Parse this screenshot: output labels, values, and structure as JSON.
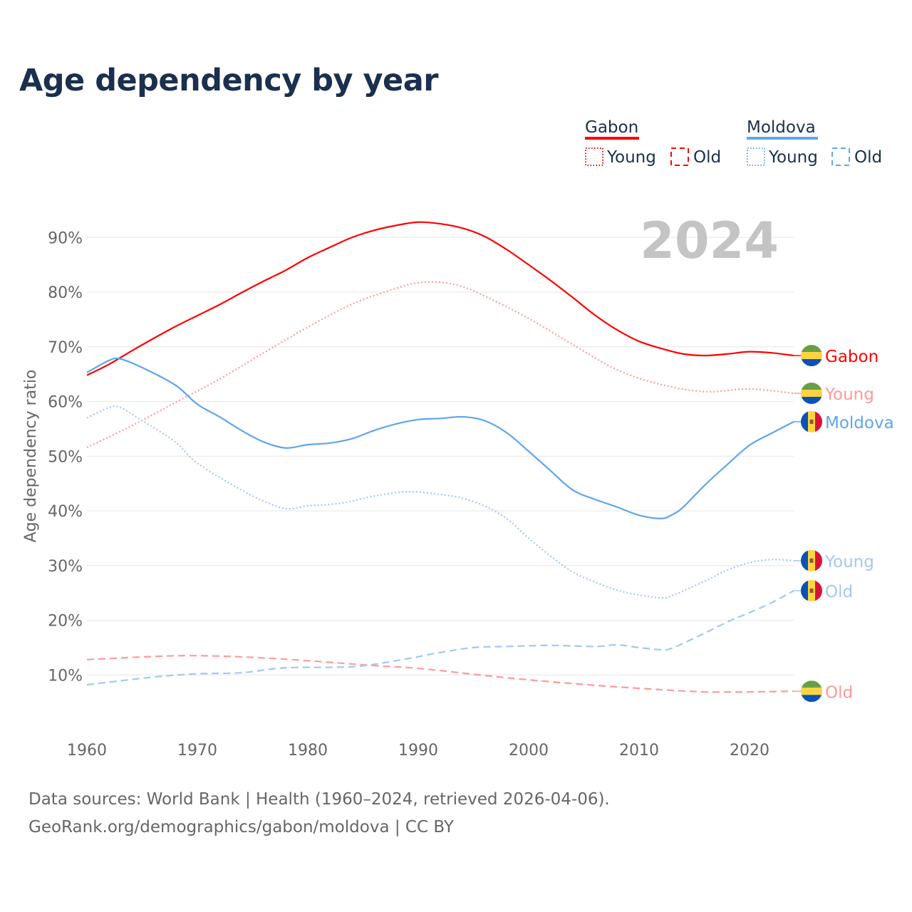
{
  "title": "Age dependency by year",
  "watermark_year": "2024",
  "footer": {
    "line1": "Data sources: World Bank | Health (1960–2024, retrieved 2026-04-06).",
    "line2": "GeoRank.org/demographics/gabon/moldova | CC BY"
  },
  "legend": {
    "groups": [
      {
        "name": "Gabon",
        "color": "#ff0000",
        "young": "Young",
        "old": "Old"
      },
      {
        "name": "Moldova",
        "color": "#5ea6ea",
        "young": "Young",
        "old": "Old"
      }
    ]
  },
  "chart_data": {
    "type": "line",
    "title": "Age dependency by year",
    "xlabel": "",
    "ylabel": "Age dependency ratio",
    "xlim": [
      1960,
      2024
    ],
    "ylim": [
      0,
      95
    ],
    "xticks": [
      "1960",
      "1970",
      "1980",
      "1990",
      "2000",
      "2010",
      "2020"
    ],
    "yticks": [
      "10%",
      "20%",
      "30%",
      "40%",
      "50%",
      "60%",
      "70%",
      "80%",
      "90%"
    ],
    "grid": true,
    "series": [
      {
        "name": "Gabon",
        "end_label": "Gabon",
        "country": "gabon",
        "style": "solid",
        "color": "#ff0000",
        "x": [
          1960,
          1962,
          1964,
          1966,
          1968,
          1970,
          1972,
          1974,
          1976,
          1978,
          1980,
          1982,
          1984,
          1986,
          1988,
          1990,
          1992,
          1994,
          1996,
          1998,
          2000,
          2002,
          2004,
          2006,
          2008,
          2010,
          2012,
          2014,
          2016,
          2018,
          2020,
          2022,
          2024
        ],
        "y": [
          64.8,
          66.8,
          69.2,
          71.5,
          73.7,
          75.7,
          77.7,
          79.9,
          82,
          84,
          86.3,
          88.2,
          90,
          91.3,
          92.2,
          92.8,
          92.5,
          91.7,
          90.2,
          87.8,
          85,
          82.1,
          79,
          75.8,
          73.1,
          71,
          69.7,
          68.7,
          68.4,
          68.7,
          69.1,
          68.9,
          68.4
        ]
      },
      {
        "name": "Gabon Young",
        "end_label": "Young",
        "country": "gabon",
        "style": "dotted",
        "color": "#ff9a9a",
        "x": [
          1960,
          1964,
          1968,
          1972,
          1976,
          1980,
          1984,
          1988,
          1990,
          1992,
          1994,
          1996,
          2000,
          2004,
          2008,
          2012,
          2016,
          2020,
          2024
        ],
        "y": [
          51.6,
          55.5,
          59.8,
          64.1,
          68.9,
          73.6,
          77.8,
          80.7,
          81.7,
          81.8,
          81,
          79.3,
          75.2,
          70.4,
          65.8,
          63.1,
          61.8,
          62.3,
          61.5
        ]
      },
      {
        "name": "Gabon Old",
        "end_label": "Old",
        "country": "gabon",
        "style": "dashed",
        "color": "#ff9a9a",
        "x": [
          1960,
          1968,
          1974,
          1980,
          1986,
          1990,
          1996,
          2000,
          2006,
          2012,
          2016,
          2020,
          2024
        ],
        "y": [
          12.8,
          13.5,
          13.3,
          12.6,
          11.7,
          11.2,
          9.9,
          9.1,
          8.1,
          7.3,
          6.9,
          6.9,
          7.0
        ]
      },
      {
        "name": "Moldova",
        "end_label": "Moldova",
        "country": "moldova",
        "style": "solid",
        "color": "#5ea6ea",
        "x": [
          1960,
          1962,
          1963,
          1965,
          1968,
          1970,
          1972,
          1974,
          1976,
          1978,
          1980,
          1982,
          1984,
          1986,
          1988,
          1990,
          1992,
          1994,
          1996,
          1998,
          2000,
          2002,
          2004,
          2006,
          2008,
          2010,
          2012,
          2013,
          2014,
          2016,
          2018,
          2020,
          2022,
          2024
        ],
        "y": [
          65.3,
          67.5,
          67.8,
          66.2,
          63,
          59.5,
          57.2,
          54.7,
          52.6,
          51.5,
          52.1,
          52.4,
          53.2,
          54.7,
          55.9,
          56.7,
          56.9,
          57.2,
          56.5,
          54.3,
          50.9,
          47.3,
          43.8,
          42.1,
          40.7,
          39.2,
          38.6,
          39.3,
          40.7,
          44.8,
          48.5,
          52,
          54.2,
          56.3
        ]
      },
      {
        "name": "Moldova Young",
        "end_label": "Young",
        "country": "moldova",
        "style": "dotted",
        "color": "#a3c8f0",
        "x": [
          1960,
          1962,
          1963,
          1965,
          1968,
          1970,
          1974,
          1976,
          1978,
          1980,
          1983,
          1986,
          1989,
          1992,
          1994,
          1996,
          1998,
          2000,
          2002,
          2004,
          2006,
          2008,
          2010,
          2012,
          2013,
          2016,
          2018,
          2020,
          2022,
          2024
        ],
        "y": [
          57,
          58.9,
          58.9,
          56.5,
          52.6,
          48.7,
          43.8,
          41.8,
          40.4,
          40.9,
          41.4,
          42.7,
          43.5,
          43,
          42.3,
          40.9,
          38.6,
          35,
          31.7,
          28.8,
          27,
          25.5,
          24.6,
          24.1,
          24.5,
          27.2,
          29.2,
          30.5,
          31.1,
          30.9
        ]
      },
      {
        "name": "Moldova Old",
        "end_label": "Old",
        "country": "moldova",
        "style": "dashed",
        "color": "#a3c8f0",
        "x": [
          1960,
          1966,
          1970,
          1974,
          1978,
          1984,
          1988,
          1992,
          1995,
          1998,
          2002,
          2006,
          2008,
          2010,
          2012,
          2013,
          2016,
          2018,
          2020,
          2022,
          2024
        ],
        "y": [
          8.2,
          9.6,
          10.2,
          10.4,
          11.3,
          11.5,
          12.6,
          14.1,
          15,
          15.2,
          15.4,
          15.2,
          15.5,
          15,
          14.6,
          14.9,
          17.7,
          19.7,
          21.4,
          23.2,
          25.4
        ]
      }
    ]
  }
}
